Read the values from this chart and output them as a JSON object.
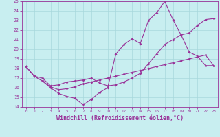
{
  "xlabel": "Windchill (Refroidissement éolien,°C)",
  "background_color": "#c8eef0",
  "grid_color": "#a8d8dc",
  "line_color": "#993399",
  "xlim": [
    -0.5,
    23.5
  ],
  "ylim": [
    14,
    25
  ],
  "xticks": [
    0,
    1,
    2,
    3,
    4,
    5,
    6,
    7,
    8,
    9,
    10,
    11,
    12,
    13,
    14,
    15,
    16,
    17,
    18,
    19,
    20,
    21,
    22,
    23
  ],
  "yticks": [
    14,
    15,
    16,
    17,
    18,
    19,
    20,
    21,
    22,
    23,
    24,
    25
  ],
  "series1_x": [
    0,
    1,
    2,
    3,
    4,
    5,
    6,
    7,
    8,
    9,
    10,
    11,
    12,
    13,
    14,
    15,
    16,
    17,
    18,
    19,
    20,
    21,
    22,
    23
  ],
  "series1_y": [
    18.2,
    17.2,
    16.7,
    16.0,
    15.4,
    15.1,
    14.9,
    14.2,
    14.8,
    15.5,
    16.0,
    19.5,
    20.5,
    21.1,
    20.6,
    23.0,
    23.8,
    25.0,
    23.1,
    21.5,
    19.7,
    19.3,
    18.3,
    18.3
  ],
  "series2_x": [
    0,
    1,
    2,
    3,
    4,
    5,
    6,
    7,
    8,
    9,
    10,
    11,
    12,
    13,
    14,
    15,
    16,
    17,
    18,
    19,
    20,
    21,
    22,
    23
  ],
  "series2_y": [
    18.2,
    17.2,
    17.0,
    16.2,
    16.3,
    16.6,
    16.7,
    16.8,
    17.0,
    16.5,
    16.2,
    16.3,
    16.6,
    17.0,
    17.5,
    18.5,
    19.5,
    20.5,
    21.0,
    21.5,
    21.7,
    22.5,
    23.1,
    23.2
  ],
  "series3_x": [
    0,
    1,
    2,
    3,
    4,
    5,
    6,
    7,
    8,
    9,
    10,
    11,
    12,
    13,
    14,
    15,
    16,
    17,
    18,
    19,
    20,
    21,
    22,
    23
  ],
  "series3_y": [
    18.2,
    17.2,
    16.7,
    16.1,
    15.8,
    15.9,
    16.1,
    16.4,
    16.6,
    16.8,
    17.0,
    17.2,
    17.4,
    17.6,
    17.8,
    18.0,
    18.2,
    18.4,
    18.6,
    18.8,
    19.0,
    19.2,
    19.4,
    18.3
  ],
  "xlabel_fontsize": 6,
  "marker": "D",
  "markersize": 2.0,
  "linewidth": 0.8
}
